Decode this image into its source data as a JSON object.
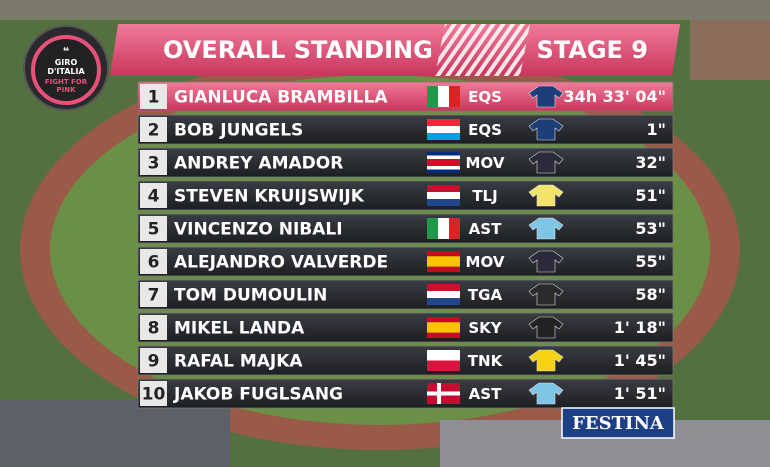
{
  "logo": {
    "brand": "GIRO D'ITALIA",
    "slogan": "FIGHT FOR PINK"
  },
  "header": {
    "title": "OVERALL STANDING",
    "stage": "STAGE 9"
  },
  "table": {
    "rows": [
      [
        "1",
        "GIANLUCA BRAMBILLA",
        "EQS",
        "34h 33' 04\""
      ],
      [
        "2",
        "BOB JUNGELS",
        "EQS",
        "1\""
      ],
      [
        "3",
        "ANDREY AMADOR",
        "MOV",
        "32\""
      ],
      [
        "4",
        "STEVEN KRUIJSWIJK",
        "TLJ",
        "51\""
      ],
      [
        "5",
        "VINCENZO NIBALI",
        "AST",
        "53\""
      ],
      [
        "6",
        "ALEJANDRO VALVERDE",
        "MOV",
        "55\""
      ],
      [
        "7",
        "TOM DUMOULIN",
        "TGA",
        "58\""
      ],
      [
        "8",
        "MIKEL LANDA",
        "SKY",
        "1' 18\""
      ],
      [
        "9",
        "RAFAL MAJKA",
        "TNK",
        "1' 45\""
      ],
      [
        "10",
        "JAKOB FUGLSANG",
        "AST",
        "1' 51\""
      ]
    ]
  },
  "sponsor": "FESTINA"
}
